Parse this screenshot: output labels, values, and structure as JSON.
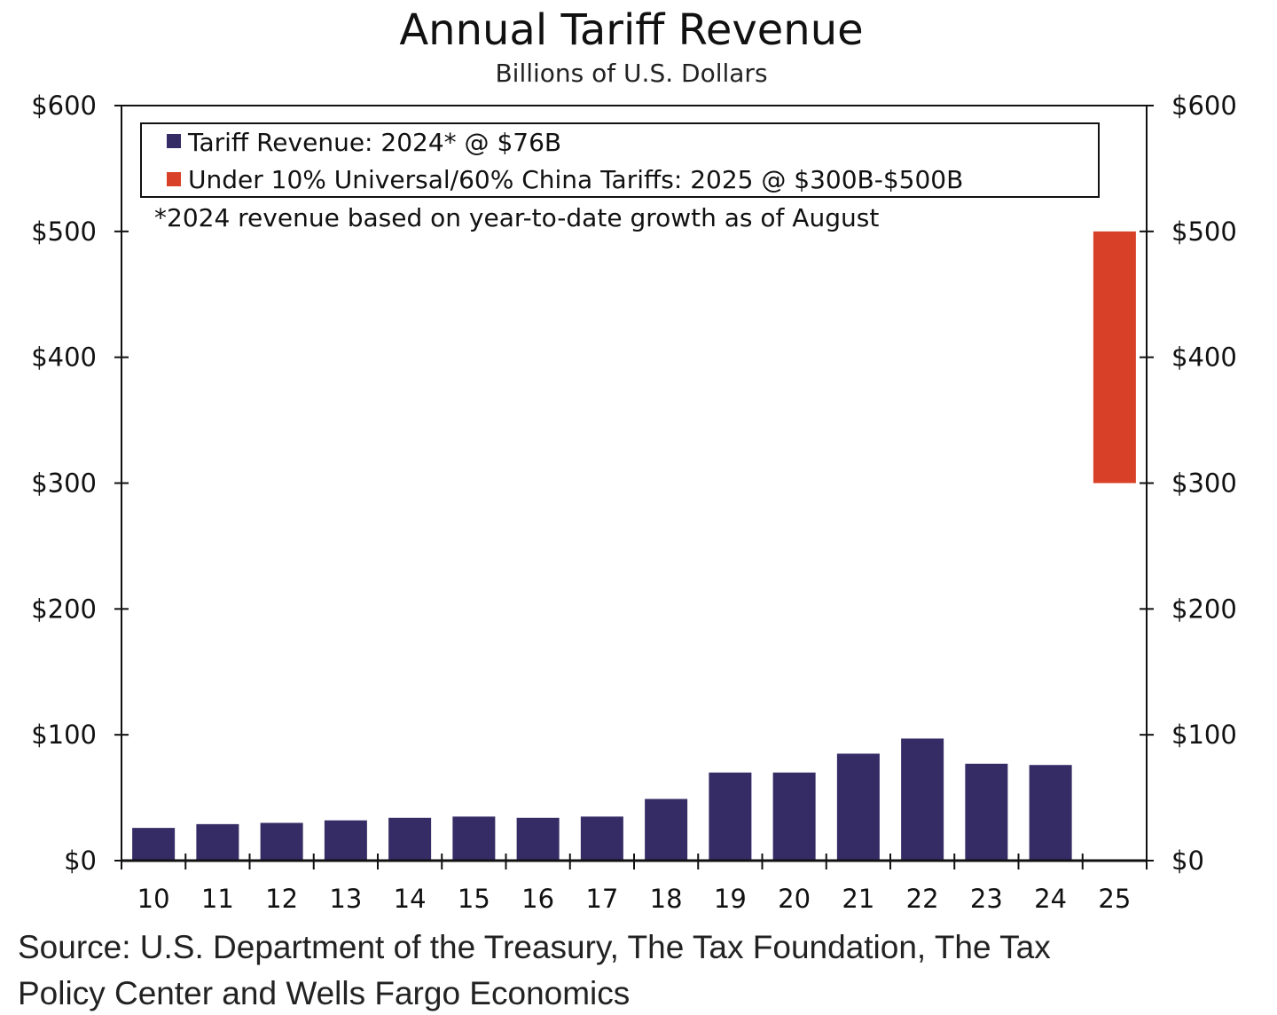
{
  "chart_data": {
    "type": "bar",
    "title": "Annual Tariff Revenue",
    "subtitle": "Billions of U.S. Dollars",
    "categories": [
      "10",
      "11",
      "12",
      "13",
      "14",
      "15",
      "16",
      "17",
      "18",
      "19",
      "20",
      "21",
      "22",
      "23",
      "24",
      "25"
    ],
    "series": [
      {
        "name": "Tariff Revenue: 2024* @ $76B",
        "color": "#352c66",
        "values": [
          26,
          29,
          30,
          32,
          34,
          35,
          34,
          35,
          49,
          70,
          70,
          85,
          97,
          77,
          76,
          null
        ]
      },
      {
        "name": "Under 10% Universal/60% China Tariffs: 2025 @ $300B-$500B",
        "color": "#d84127",
        "range": {
          "category": "25",
          "low": 300,
          "high": 500
        }
      }
    ],
    "ylim": [
      0,
      600
    ],
    "yticks": [
      0,
      100,
      200,
      300,
      400,
      500,
      600
    ],
    "ytick_labels": [
      "$0",
      "$100",
      "$200",
      "$300",
      "$400",
      "$500",
      "$600"
    ],
    "legend_placement": "top-left",
    "annotation": "*2024 revenue based on year-to-date growth as of August",
    "source_line1": "Source: U.S. Department of the Treasury, The Tax Foundation, The Tax",
    "source_line2": "Policy Center and Wells Fargo Economics"
  }
}
